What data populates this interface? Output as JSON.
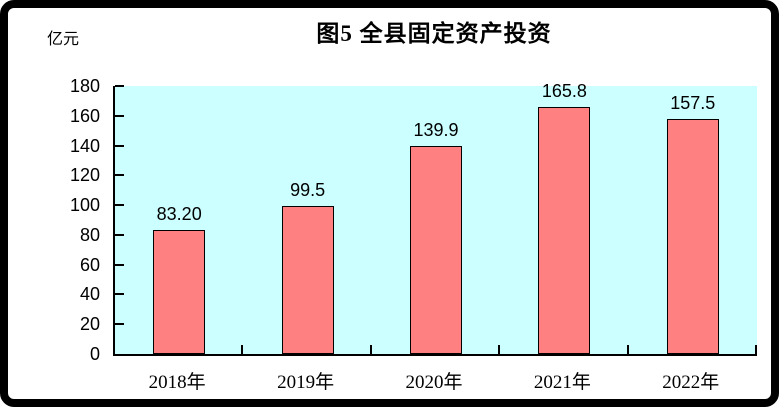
{
  "chart_data": {
    "type": "bar",
    "title": "图5  全县固定资产投资",
    "unit": "亿元",
    "categories": [
      "2018年",
      "2019年",
      "2020年",
      "2021年",
      "2022年"
    ],
    "values": [
      83.2,
      99.5,
      139.9,
      165.8,
      157.5
    ],
    "value_labels": [
      "83.20",
      "99.5",
      "139.9",
      "165.8",
      "157.5"
    ],
    "xlabel": "",
    "ylabel": "亿元",
    "ylim": [
      0,
      180
    ],
    "ytick_step": 20,
    "grid": "off",
    "legend": "none",
    "colors": {
      "bar_fill": "#FF8080",
      "bar_border": "#000000",
      "plot_background": "#CCFFFF",
      "axis": "#000000",
      "text": "#000000",
      "frame": "#000000",
      "page_background": "#FFFFFF"
    }
  }
}
